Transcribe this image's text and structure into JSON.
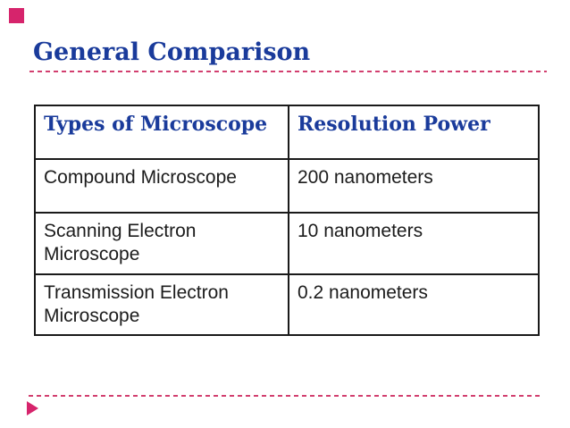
{
  "slide": {
    "title": "General Comparison"
  },
  "table": {
    "headers": [
      "Types of Microscope",
      "Resolution Power"
    ],
    "rows": [
      [
        "Compound Microscope",
        "200 nanometers"
      ],
      [
        "Scanning Electron Microscope",
        "10 nanometers"
      ],
      [
        "Transmission Electron Microscope",
        "0.2 nanometers"
      ]
    ]
  },
  "colors": {
    "heading_blue": "#1a3b9b",
    "accent_magenta": "#d6246c",
    "dash_pink": "#d23f6f",
    "table_border": "#1a1a1a",
    "body_text": "#1c1c1c"
  },
  "icons": {
    "corner_square": "accent-square",
    "footer_arrow": "right-triangle-icon"
  }
}
